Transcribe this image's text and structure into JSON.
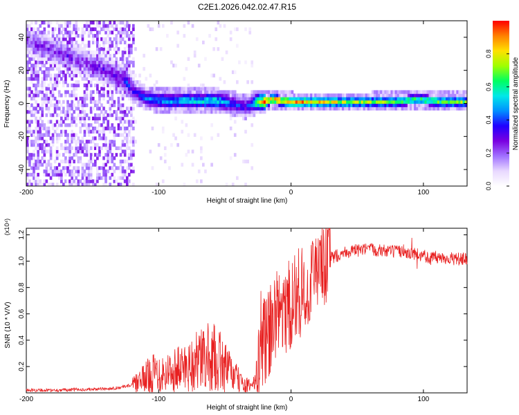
{
  "title": "C2E1.2026.042.02.47.R15",
  "chart_data": [
    {
      "type": "heatmap",
      "xlabel": "Height of straight line (km)",
      "ylabel": "Frequency (Hz)",
      "xlim": [
        -200,
        133
      ],
      "ylim": [
        -50,
        50
      ],
      "x_ticks": [
        -200,
        -100,
        0,
        100
      ],
      "y_ticks": [
        -40,
        -20,
        0,
        20,
        40
      ],
      "colorbar": {
        "label": "Normalized spectral amplitude",
        "range": [
          0,
          1
        ],
        "ticks": [
          0.0,
          0.2,
          0.4,
          0.6,
          0.8
        ],
        "colormap": [
          "#ffffff",
          "#e8d8ff",
          "#a070ff",
          "#7a00e0",
          "#2000ff",
          "#0090ff",
          "#00e8e8",
          "#00ff60",
          "#a0ff00",
          "#ffe000",
          "#ff8000",
          "#ff0000"
        ]
      },
      "ridge": {
        "x": [
          -200,
          -190,
          -180,
          -170,
          -160,
          -150,
          -140,
          -130,
          -125,
          -120,
          -110,
          -100,
          -90,
          -80,
          -70,
          -60,
          -50,
          -45,
          -40,
          -35,
          -30,
          -25,
          -20,
          -15,
          -10,
          -5,
          0,
          10,
          20,
          40,
          60,
          80,
          85,
          90,
          95,
          100,
          110,
          120,
          133
        ],
        "y": [
          37,
          34,
          31,
          28,
          25,
          22,
          19,
          15,
          12,
          7,
          2,
          1,
          0.5,
          1,
          0.5,
          1,
          0,
          -1,
          -2,
          -3,
          -1,
          0,
          0.5,
          1.5,
          1,
          0.5,
          0,
          0,
          0,
          0,
          0,
          0.3,
          0.8,
          1.2,
          1.5,
          1.2,
          0.4,
          0.2,
          0
        ],
        "amplitude": [
          0.25,
          0.3,
          0.25,
          0.3,
          0.25,
          0.3,
          0.3,
          0.35,
          0.4,
          0.35,
          0.45,
          0.5,
          0.5,
          0.55,
          0.55,
          0.6,
          0.5,
          0.4,
          0.4,
          0.35,
          0.5,
          0.8,
          0.95,
          0.9,
          0.95,
          0.9,
          0.85,
          0.85,
          0.8,
          0.75,
          0.7,
          0.7,
          0.65,
          0.7,
          0.65,
          0.7,
          0.7,
          0.7,
          0.7
        ]
      }
    },
    {
      "type": "line",
      "xlabel": "Height of straight line (km)",
      "ylabel": "SNR (10 * V/V)",
      "y_multiplier": "(x10⁴)",
      "xlim": [
        -200,
        133
      ],
      "ylim": [
        0,
        1.25
      ],
      "x_ticks": [
        -200,
        -100,
        0,
        100
      ],
      "y_ticks": [
        0.2,
        0.4,
        0.6,
        0.8,
        1.0,
        1.2
      ],
      "color": "#e82020",
      "series": [
        {
          "x": [
            -200,
            -180,
            -160,
            -140,
            -130,
            -120,
            -115,
            -110,
            -105,
            -100,
            -95,
            -90,
            -85,
            -80,
            -75,
            -70,
            -65,
            -60,
            -55,
            -50,
            -45,
            -40,
            -35,
            -30,
            -25,
            -22,
            -20,
            -18,
            -15,
            -12,
            -10,
            -5,
            0,
            5,
            10,
            15,
            20,
            25,
            30,
            40,
            50,
            60,
            70,
            80,
            85,
            90,
            95,
            100,
            105,
            110,
            120,
            133
          ],
          "y": [
            0.02,
            0.02,
            0.025,
            0.03,
            0.04,
            0.06,
            0.08,
            0.12,
            0.15,
            0.16,
            0.15,
            0.17,
            0.18,
            0.2,
            0.22,
            0.24,
            0.26,
            0.27,
            0.25,
            0.2,
            0.15,
            0.1,
            0.06,
            0.05,
            0.15,
            0.35,
            0.4,
            0.45,
            0.5,
            0.55,
            0.6,
            0.62,
            0.68,
            0.72,
            0.78,
            0.85,
            0.92,
            0.98,
            1.02,
            1.07,
            1.08,
            1.09,
            1.08,
            1.07,
            1.08,
            1.06,
            1.05,
            1.05,
            1.02,
            1.03,
            1.02,
            1.01
          ]
        }
      ]
    }
  ]
}
